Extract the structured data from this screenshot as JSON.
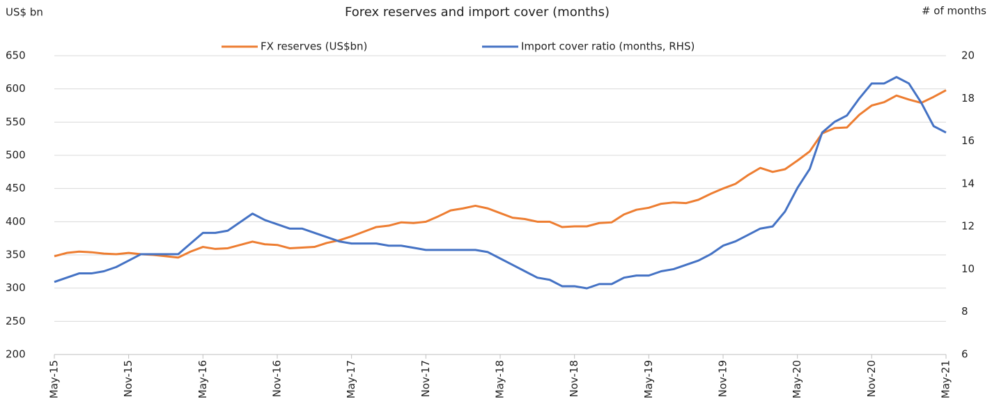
{
  "chart_data": {
    "type": "line",
    "title": "Forex reserves and import cover (months)",
    "y_label": "US$ bn",
    "y2_label": "# of months",
    "categories": [
      "May-15",
      null,
      null,
      null,
      null,
      null,
      "Nov-15",
      null,
      null,
      null,
      null,
      null,
      "May-16",
      null,
      null,
      null,
      null,
      null,
      "Nov-16",
      null,
      null,
      null,
      null,
      null,
      "May-17",
      null,
      null,
      null,
      null,
      null,
      "Nov-17",
      null,
      null,
      null,
      null,
      null,
      "May-18",
      null,
      null,
      null,
      null,
      null,
      "Nov-18",
      null,
      null,
      null,
      null,
      null,
      "May-19",
      null,
      null,
      null,
      null,
      null,
      "Nov-19",
      null,
      null,
      null,
      null,
      null,
      "May-20",
      null,
      null,
      null,
      null,
      null,
      "Nov-20",
      null,
      null,
      null,
      null,
      null,
      "May-21"
    ],
    "series": [
      {
        "name": "FX reserves (US$bn)",
        "color": "#ed7d31",
        "axis": "y",
        "values": [
          348,
          353,
          355,
          354,
          352,
          351,
          353,
          351,
          350,
          348,
          346,
          355,
          362,
          359,
          360,
          365,
          370,
          366,
          365,
          360,
          361,
          362,
          368,
          372,
          378,
          385,
          392,
          394,
          399,
          398,
          400,
          408,
          417,
          420,
          424,
          420,
          413,
          406,
          404,
          400,
          400,
          392,
          393,
          393,
          398,
          399,
          411,
          418,
          421,
          427,
          429,
          428,
          433,
          442,
          450,
          457,
          470,
          481,
          475,
          479,
          492,
          506,
          533,
          541,
          542,
          561,
          575,
          580,
          590,
          584,
          579,
          588,
          598
        ]
      },
      {
        "name": "Import cover ratio (months, RHS)",
        "color": "#4472c4",
        "axis": "y2",
        "values": [
          9.4,
          9.6,
          9.8,
          9.8,
          9.9,
          10.1,
          10.4,
          10.7,
          10.7,
          10.7,
          10.7,
          11.2,
          11.7,
          11.7,
          11.8,
          12.2,
          12.6,
          12.3,
          12.1,
          11.9,
          11.9,
          11.7,
          11.5,
          11.3,
          11.2,
          11.2,
          11.2,
          11.1,
          11.1,
          11.0,
          10.9,
          10.9,
          10.9,
          10.9,
          10.9,
          10.8,
          10.5,
          10.2,
          9.9,
          9.6,
          9.5,
          9.2,
          9.2,
          9.1,
          9.3,
          9.3,
          9.6,
          9.7,
          9.7,
          9.9,
          10.0,
          10.2,
          10.4,
          10.7,
          11.1,
          11.3,
          11.6,
          11.9,
          12.0,
          12.7,
          13.8,
          14.7,
          16.4,
          16.9,
          17.2,
          18.0,
          18.7,
          18.7,
          19.0,
          18.7,
          17.8,
          16.7,
          16.4
        ]
      }
    ],
    "ylim": [
      200,
      650
    ],
    "yticks": [
      200,
      250,
      300,
      350,
      400,
      450,
      500,
      550,
      600,
      650
    ],
    "y2lim": [
      6,
      20
    ],
    "y2ticks": [
      6,
      8,
      10,
      12,
      14,
      16,
      18,
      20
    ],
    "grid": true,
    "legend": "top"
  }
}
